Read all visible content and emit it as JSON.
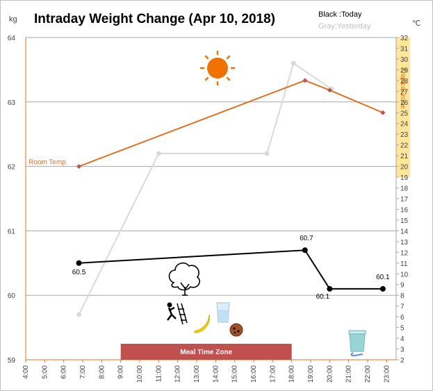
{
  "chart_data": {
    "type": "line",
    "title": "Intraday Weight Change (Apr 10, 2018)",
    "left_unit": "kg",
    "right_unit": "℃",
    "legend": {
      "today": "Black :Today",
      "yesterday": "Gray:Yesterday"
    },
    "x_tick_labels": [
      "4:00",
      "5:00",
      "6:00",
      "7:00",
      "8:00",
      "9:00",
      "10:00",
      "11:00",
      "12:00",
      "13:00",
      "14:00",
      "15:00",
      "16:00",
      "17:00",
      "18:00",
      "19:00",
      "20:00",
      "21:00",
      "22:00",
      "23:00"
    ],
    "ylim_weight": [
      59,
      64
    ],
    "ylim_temp": [
      2,
      32
    ],
    "series": [
      {
        "name": "Today",
        "color": "#000000",
        "x": [
          6.8,
          18.7,
          20.0,
          22.8
        ],
        "y": [
          60.5,
          60.7,
          60.1,
          60.1
        ],
        "labels": [
          "60.5",
          "60.7",
          "60.1",
          "60.1"
        ]
      },
      {
        "name": "Yesterday",
        "color": "#d9d9d9",
        "x": [
          6.8,
          11.0,
          16.7,
          18.1,
          20.1
        ],
        "y": [
          59.7,
          62.2,
          62.2,
          63.6,
          63.2
        ]
      },
      {
        "name": "Room Temp.",
        "color": "#e07020",
        "axis": "right",
        "x": [
          6.8,
          18.7,
          20.0,
          22.8
        ],
        "y": [
          20.0,
          28.0,
          27.1,
          25.0
        ]
      }
    ],
    "annotations": {
      "room_temp": "Room Temp.",
      "tropical_zone": "Tropical zone",
      "meal_zone": "Meal Time Zone"
    },
    "tropical_zone_range": [
      19,
      32
    ],
    "meal_zone_x": [
      9.0,
      18.0
    ],
    "colors": {
      "temp": "#e07020",
      "today": "#000000",
      "yesterday": "#d9d9d9",
      "tropical": "#ffe699",
      "meal": "#c0504d",
      "sun": "#f07000"
    },
    "icons": [
      "sun-icon",
      "tree-icon",
      "exercise-icon",
      "banana-icon",
      "water-glass-icon",
      "cookie-icon",
      "yogurt-icon"
    ]
  }
}
